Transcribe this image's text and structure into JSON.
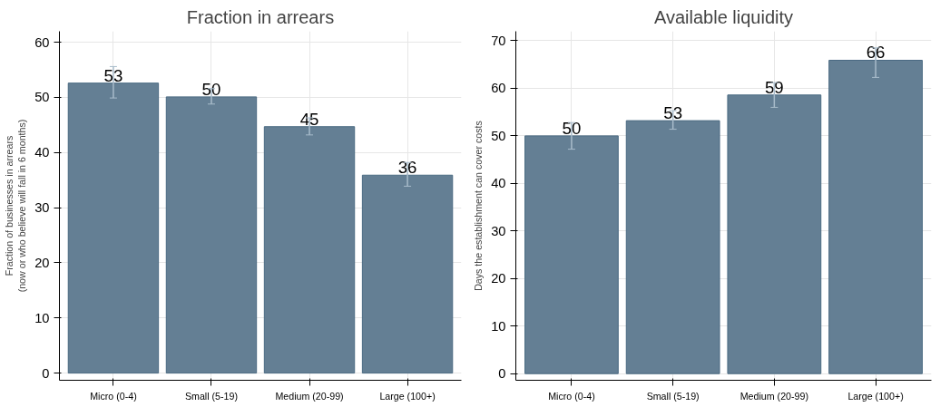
{
  "chart_data": [
    {
      "type": "bar",
      "title": "Fraction in arrears",
      "ylabel": "Fraction of businesses in arrears\n(now or who believe will fall in 6 months)",
      "categories": [
        "Micro (0-4)",
        "Small (5-19)",
        "Medium (20-99)",
        "Large (100+)"
      ],
      "values": [
        52.6,
        50.1,
        44.7,
        35.9
      ],
      "value_labels": [
        "53",
        "50",
        "45",
        "36"
      ],
      "color": "#647f94",
      "errors": [
        [
          49.9,
          55.6
        ],
        [
          48.8,
          51.6
        ],
        [
          43.2,
          46.3
        ],
        [
          33.9,
          38.2
        ]
      ],
      "ylim": [
        -1.3,
        62
      ],
      "yticks": [
        0,
        10,
        20,
        30,
        40,
        50,
        60
      ],
      "grid": true
    },
    {
      "type": "bar",
      "title": "Available liquidity",
      "ylabel": "Days the establishment can cover costs",
      "categories": [
        "Micro (0-4)",
        "Small (5-19)",
        "Medium (20-99)",
        "Large (100+)"
      ],
      "values": [
        50.0,
        53.2,
        58.6,
        65.9
      ],
      "value_labels": [
        "50",
        "53",
        "59",
        "66"
      ],
      "color": "#647f94",
      "errors": [
        [
          47.2,
          52.8
        ],
        [
          51.4,
          55.3
        ],
        [
          56.0,
          61.2
        ],
        [
          62.3,
          68.5
        ]
      ],
      "ylim": [
        -1.4,
        72
      ],
      "yticks": [
        0,
        10,
        20,
        30,
        40,
        50,
        60,
        70
      ],
      "grid": true
    }
  ]
}
